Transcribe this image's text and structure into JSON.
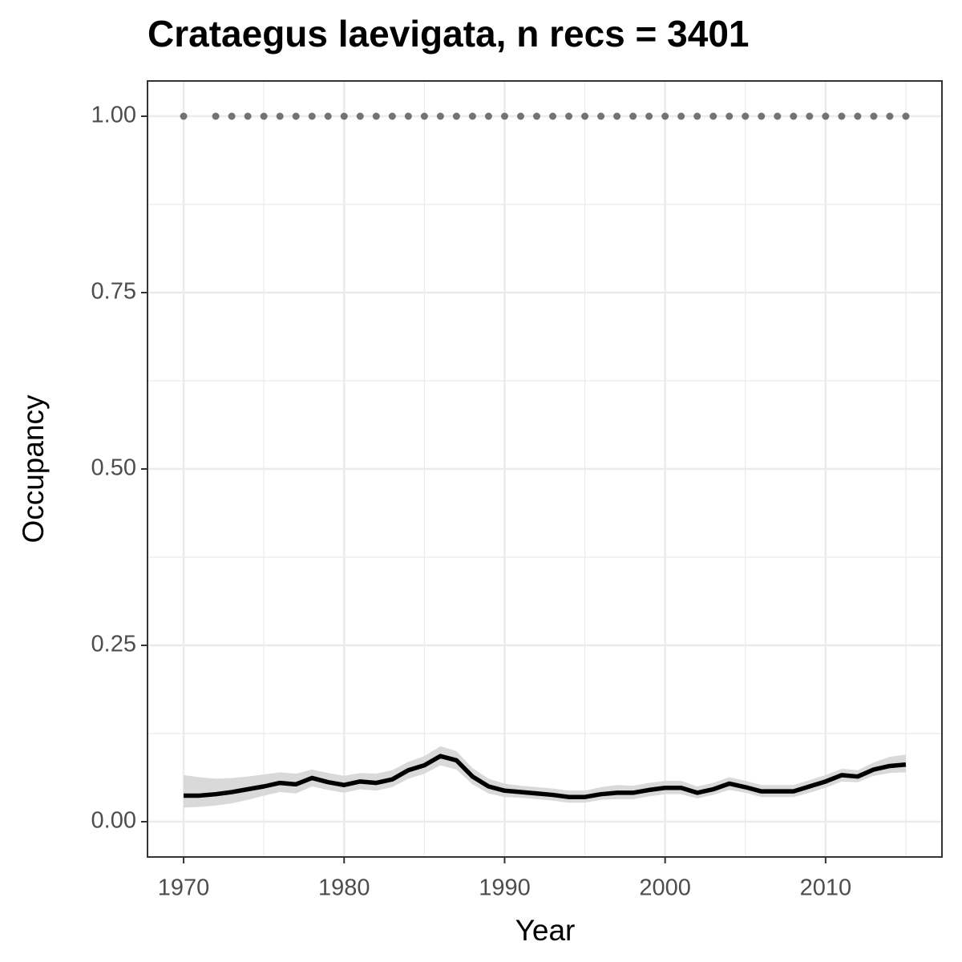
{
  "chart_data": {
    "type": "line",
    "title": "Crataegus laevigata, n recs = 3401",
    "x_label": "Year",
    "y_label": "Occupancy",
    "x": [
      1970,
      1971,
      1972,
      1973,
      1974,
      1975,
      1976,
      1977,
      1978,
      1979,
      1980,
      1981,
      1982,
      1983,
      1984,
      1985,
      1986,
      1987,
      1988,
      1989,
      1990,
      1991,
      1992,
      1993,
      1994,
      1995,
      1996,
      1997,
      1998,
      1999,
      2000,
      2001,
      2002,
      2003,
      2004,
      2005,
      2006,
      2007,
      2008,
      2009,
      2010,
      2011,
      2012,
      2013,
      2014,
      2015
    ],
    "series": [
      {
        "color": "#000000",
        "band_color": "#d9d9d9",
        "values": [
          0.037,
          0.037,
          0.039,
          0.042,
          0.046,
          0.05,
          0.055,
          0.053,
          0.062,
          0.056,
          0.052,
          0.057,
          0.055,
          0.06,
          0.073,
          0.08,
          0.093,
          0.087,
          0.064,
          0.05,
          0.044,
          0.042,
          0.04,
          0.038,
          0.035,
          0.035,
          0.039,
          0.041,
          0.041,
          0.045,
          0.048,
          0.048,
          0.041,
          0.046,
          0.054,
          0.049,
          0.043,
          0.043,
          0.043,
          0.05,
          0.057,
          0.066,
          0.064,
          0.074,
          0.079,
          0.081
        ],
        "upper": [
          0.066,
          0.063,
          0.061,
          0.062,
          0.064,
          0.067,
          0.07,
          0.068,
          0.074,
          0.069,
          0.065,
          0.069,
          0.068,
          0.073,
          0.085,
          0.093,
          0.107,
          0.1,
          0.076,
          0.061,
          0.054,
          0.051,
          0.049,
          0.047,
          0.044,
          0.044,
          0.049,
          0.052,
          0.051,
          0.055,
          0.058,
          0.058,
          0.05,
          0.055,
          0.063,
          0.058,
          0.052,
          0.052,
          0.052,
          0.059,
          0.066,
          0.075,
          0.073,
          0.084,
          0.092,
          0.095
        ],
        "lower": [
          0.02,
          0.021,
          0.023,
          0.026,
          0.031,
          0.037,
          0.042,
          0.04,
          0.05,
          0.045,
          0.041,
          0.046,
          0.044,
          0.049,
          0.061,
          0.068,
          0.08,
          0.074,
          0.053,
          0.04,
          0.035,
          0.034,
          0.032,
          0.03,
          0.027,
          0.027,
          0.031,
          0.032,
          0.032,
          0.036,
          0.039,
          0.039,
          0.033,
          0.038,
          0.045,
          0.041,
          0.035,
          0.035,
          0.035,
          0.041,
          0.048,
          0.057,
          0.056,
          0.065,
          0.069,
          0.07
        ]
      }
    ],
    "points": {
      "color": "#737373",
      "x": [
        1970,
        1972,
        1973,
        1974,
        1975,
        1976,
        1977,
        1978,
        1979,
        1980,
        1981,
        1982,
        1983,
        1984,
        1985,
        1986,
        1987,
        1988,
        1989,
        1990,
        1991,
        1992,
        1993,
        1994,
        1995,
        1996,
        1997,
        1998,
        1999,
        2000,
        2001,
        2002,
        2003,
        2004,
        2005,
        2006,
        2007,
        2008,
        2009,
        2010,
        2011,
        2012,
        2013,
        2014,
        2015
      ],
      "values": [
        1,
        1,
        1,
        1,
        1,
        1,
        1,
        1,
        1,
        1,
        1,
        1,
        1,
        1,
        1,
        1,
        1,
        1,
        1,
        1,
        1,
        1,
        1,
        1,
        1,
        1,
        1,
        1,
        1,
        1,
        1,
        1,
        1,
        1,
        1,
        1,
        1,
        1,
        1,
        1,
        1,
        1,
        1,
        1,
        1
      ]
    },
    "xlim": [
      1967.75,
      2017.25
    ],
    "ylim": [
      -0.05,
      1.05
    ],
    "xticks": [
      1970,
      1980,
      1990,
      2000,
      2010
    ],
    "yticks": [
      {
        "value": 0,
        "label": "0.00"
      },
      {
        "value": 0.25,
        "label": "0.25"
      },
      {
        "value": 0.5,
        "label": "0.50"
      },
      {
        "value": 0.75,
        "label": "0.75"
      },
      {
        "value": 1,
        "label": "1.00"
      }
    ],
    "x_minor_ticks": [
      1975,
      1985,
      1995,
      2005,
      2015
    ],
    "y_minor_ticks": [
      0.125,
      0.375,
      0.625,
      0.875
    ],
    "grid": true
  }
}
